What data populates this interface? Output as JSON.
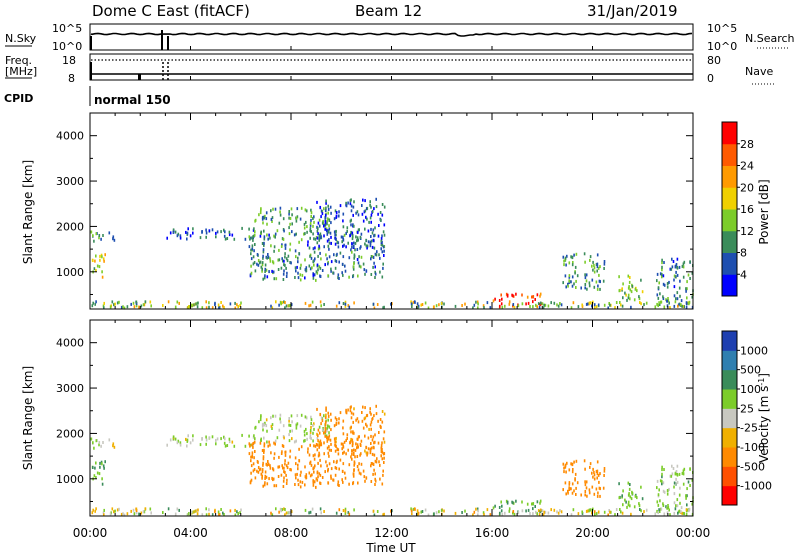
{
  "header": {
    "station": "Dome C East (fitACF)",
    "beam": "Beam 12",
    "date": "31/Jan/2019"
  },
  "noise_panel": {
    "left_label": "N.Sky",
    "right_label": "N.Search",
    "left_ticks": [
      "10^5",
      "10^0"
    ],
    "right_ticks": [
      "10^5",
      "10^0"
    ]
  },
  "freq_panel": {
    "left_label_1": "Freq.",
    "left_label_2": "[MHz]",
    "left_ticks": [
      "18",
      "8"
    ],
    "right_label": "Nave",
    "right_ticks": [
      "80",
      "0"
    ]
  },
  "cpid": {
    "label": "CPID",
    "program": "normal 150"
  },
  "power_panel": {
    "ylabel": "Slant Range [km]",
    "yticks": [
      "1000",
      "2000",
      "3000",
      "4000"
    ],
    "colorbar_label": "Power [dB]",
    "colorbar_ticks": [
      "4",
      "8",
      "12",
      "16",
      "20",
      "24",
      "28"
    ],
    "colors": [
      "#0000ff",
      "#1e4fb0",
      "#3a8c5a",
      "#7ccc2a",
      "#f0d000",
      "#ff9a00",
      "#ff5a00",
      "#ff0000"
    ]
  },
  "velocity_panel": {
    "ylabel": "Slant Range [km]",
    "yticks": [
      "1000",
      "2000",
      "3000",
      "4000"
    ],
    "colorbar_label": "Velocity [m s",
    "colorbar_label_sup": "-1",
    "colorbar_label_end": "]",
    "colorbar_ticks": [
      "1000",
      "500",
      "100",
      "25",
      "-25",
      "-100",
      "-500",
      "-1000"
    ],
    "colors": [
      "#1e3fb0",
      "#2f7fb0",
      "#3a8c5a",
      "#7ccc2a",
      "#c8c8c0",
      "#f0b000",
      "#ff8a00",
      "#ff5000",
      "#ff0000"
    ]
  },
  "xaxis": {
    "label": "Time UT",
    "ticks": [
      "00:00",
      "04:00",
      "08:00",
      "12:00",
      "16:00",
      "20:00",
      "00:00"
    ]
  },
  "chart_data": {
    "type": "heatmap",
    "title": "Dome C East (fitACF)",
    "x_range_hours": [
      0,
      24
    ],
    "y_range_km": [
      180,
      4500
    ],
    "power_range_db": [
      0,
      30
    ],
    "velocity_range_ms": [
      -1000,
      1000
    ],
    "scatter_regions": [
      {
        "t_start": 0.0,
        "t_end": 1.0,
        "range_start": 1650,
        "range_end": 1900,
        "power": 10,
        "velocity": 25
      },
      {
        "t_start": 0.0,
        "t_end": 0.6,
        "range_start": 850,
        "range_end": 1400,
        "power": 16,
        "velocity": 100
      },
      {
        "t_start": 3.0,
        "t_end": 6.5,
        "range_start": 1700,
        "range_end": 1950,
        "power": 6,
        "velocity": 25
      },
      {
        "t_start": 6.5,
        "t_end": 9.5,
        "range_start": 1800,
        "range_end": 2400,
        "power": 10,
        "velocity": 25
      },
      {
        "t_start": 6.3,
        "t_end": 11.7,
        "range_start": 800,
        "range_end": 1800,
        "power": 8,
        "velocity": -300
      },
      {
        "t_start": 9.0,
        "t_end": 11.7,
        "range_start": 1500,
        "range_end": 2600,
        "power": 6,
        "velocity": -150
      },
      {
        "t_start": 16.0,
        "t_end": 18.0,
        "range_start": 200,
        "range_end": 500,
        "power": 26,
        "velocity": 100
      },
      {
        "t_start": 18.8,
        "t_end": 20.5,
        "range_start": 600,
        "range_end": 1400,
        "power": 10,
        "velocity": -400
      },
      {
        "t_start": 21.0,
        "t_end": 22.0,
        "range_start": 300,
        "range_end": 900,
        "power": 14,
        "velocity": 100
      },
      {
        "t_start": 22.5,
        "t_end": 24.0,
        "range_start": 200,
        "range_end": 1300,
        "power": 8,
        "velocity": 50
      }
    ],
    "frequency_mhz": 8.5,
    "program": "normal 150"
  }
}
